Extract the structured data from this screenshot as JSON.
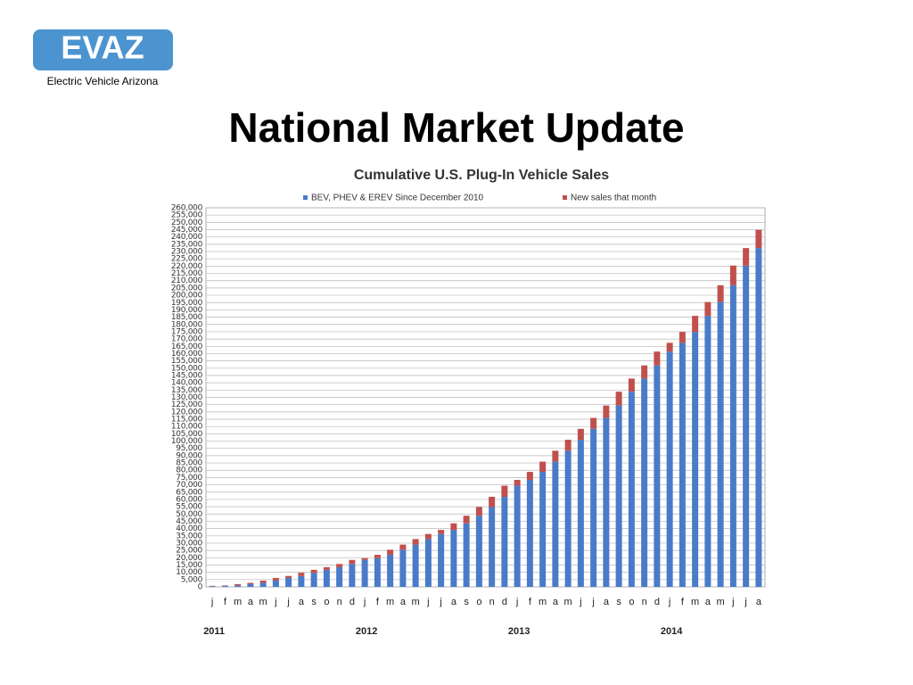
{
  "logo": {
    "text": "EVAZ",
    "subtitle": "Electric Vehicle Arizona"
  },
  "slide_title": "National Market Update",
  "chart_data": {
    "type": "stacked_bar",
    "title": "Cumulative U.S. Plug-In Vehicle Sales",
    "categories": [
      "j",
      "f",
      "m",
      "a",
      "m",
      "j",
      "j",
      "a",
      "s",
      "o",
      "n",
      "d",
      "j",
      "f",
      "m",
      "a",
      "m",
      "j",
      "j",
      "a",
      "s",
      "o",
      "n",
      "d",
      "j",
      "f",
      "m",
      "a",
      "m",
      "j",
      "j",
      "a",
      "s",
      "o",
      "n",
      "d",
      "j",
      "f",
      "m",
      "a",
      "m",
      "j",
      "j",
      "a"
    ],
    "years": [
      "2011",
      "2012",
      "2013",
      "2014"
    ],
    "series": [
      {
        "name": "BEV, PHEV & EREV Since December 2010",
        "color": "#4a7bc8",
        "values": [
          350,
          700,
          1000,
          1900,
          2800,
          4300,
          6100,
          7500,
          9700,
          11700,
          13500,
          15700,
          18500,
          19700,
          22000,
          25500,
          29000,
          32800,
          36300,
          39100,
          43600,
          48800,
          54800,
          61800,
          69400,
          73400,
          78900,
          85900,
          93400,
          100900,
          108400,
          115900,
          124400,
          133900,
          142900,
          151900,
          161400,
          167400,
          174900,
          185900,
          195400,
          206900,
          220400,
          232400
        ]
      },
      {
        "name": "New sales that month",
        "color": "#c0504d",
        "values": [
          350,
          300,
          900,
          900,
          1500,
          1800,
          1400,
          2200,
          2000,
          1800,
          2200,
          2800,
          1200,
          2300,
          3500,
          3500,
          3800,
          3500,
          2800,
          4500,
          5200,
          6000,
          7000,
          7600,
          4000,
          5500,
          7000,
          7500,
          7500,
          7500,
          7500,
          8500,
          9500,
          9000,
          9000,
          9500,
          6000,
          7500,
          11000,
          9500,
          11500,
          13500,
          12000,
          12500
        ]
      }
    ],
    "ylim": [
      0,
      260000
    ],
    "yticks": [
      0,
      {
        "value": 5000,
        "label": "5,000"
      },
      {
        "value": 10000,
        "label": "10,000"
      },
      {
        "value": 15000,
        "label": "15,000"
      },
      {
        "value": 20000,
        "label": "20,000"
      },
      {
        "value": 25000,
        "label": "25,000"
      },
      {
        "value": 30000,
        "label": "30,000"
      },
      {
        "value": 35000,
        "label": "35,000"
      },
      {
        "value": 40000,
        "label": "40,000"
      },
      {
        "value": 45000,
        "label": "45,000"
      },
      {
        "value": 50000,
        "label": "50,000"
      },
      {
        "value": 55000,
        "label": "55,000"
      },
      {
        "value": 60000,
        "label": "60,000"
      },
      {
        "value": 65000,
        "label": "65,000"
      },
      {
        "value": 70000,
        "label": "70,000"
      },
      {
        "value": 75000,
        "label": "75,000"
      },
      {
        "value": 80000,
        "label": "80,000"
      },
      {
        "value": 85000,
        "label": "85,000"
      },
      {
        "value": 90000,
        "label": "90,000"
      },
      {
        "value": 95000,
        "label": "95,000"
      },
      {
        "value": 100000,
        "label": "100,000"
      },
      {
        "value": 105000,
        "label": "105,000"
      },
      {
        "value": 110000,
        "label": "110,000"
      },
      {
        "value": 115000,
        "label": "115,000"
      },
      {
        "value": 120000,
        "label": "120,000"
      },
      {
        "value": 125000,
        "label": "125,000"
      },
      {
        "value": 130000,
        "label": "130,000"
      },
      {
        "value": 135000,
        "label": "135,000"
      },
      {
        "value": 140000,
        "label": "140,000"
      },
      {
        "value": 145000,
        "label": "145,000"
      },
      {
        "value": 150000,
        "label": "150,000"
      },
      {
        "value": 155000,
        "label": "155,000"
      },
      {
        "value": 160000,
        "label": "160,000"
      },
      {
        "value": 165000,
        "label": "165,000"
      },
      {
        "value": 170000,
        "label": "170,000"
      },
      {
        "value": 175000,
        "label": "175,000"
      },
      {
        "value": 180000,
        "label": "180,000"
      },
      {
        "value": 185000,
        "label": "185,000"
      },
      {
        "value": 190000,
        "label": "190,000"
      },
      {
        "value": 195000,
        "label": "195,000"
      },
      {
        "value": 200000,
        "label": "200,000"
      },
      {
        "value": 205000,
        "label": "205,000"
      },
      {
        "value": 210000,
        "label": "210,000"
      },
      {
        "value": 215000,
        "label": "215,000"
      },
      {
        "value": 220000,
        "label": "220,000"
      },
      {
        "value": 225000,
        "label": "225,000"
      },
      {
        "value": 230000,
        "label": "230,000"
      },
      {
        "value": 235000,
        "label": "235,000"
      },
      {
        "value": 240000,
        "label": "240,000"
      },
      {
        "value": 245000,
        "label": "245,000"
      },
      {
        "value": 250000,
        "label": "250,000"
      },
      {
        "value": 255000,
        "label": "255,000"
      },
      {
        "value": 260000,
        "label": "260,000"
      }
    ],
    "grid": true
  }
}
